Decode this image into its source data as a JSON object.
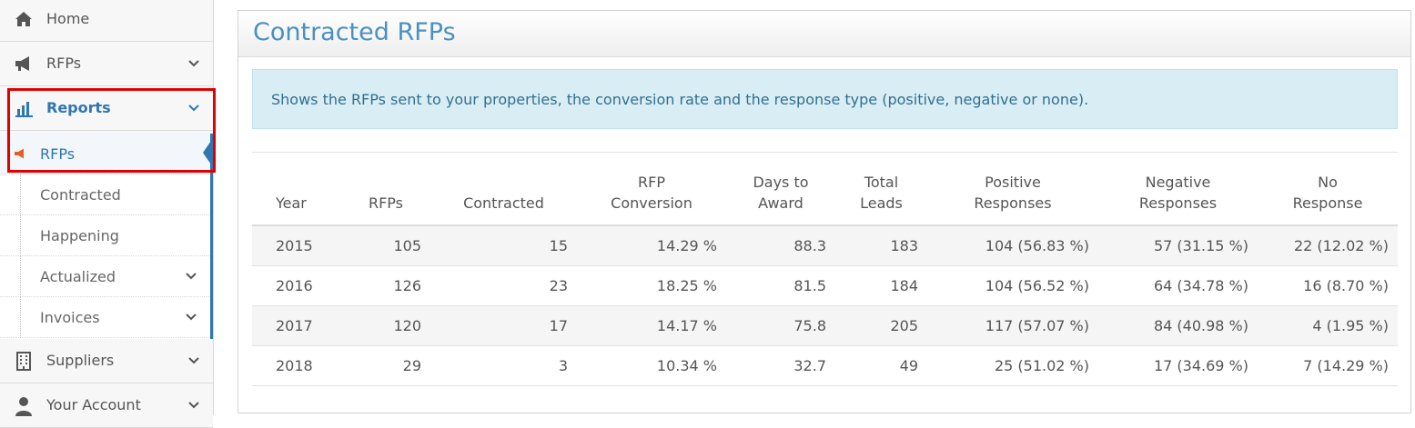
{
  "sidebar": {
    "items": [
      {
        "label": "Home",
        "icon": "home-icon"
      },
      {
        "label": "RFPs",
        "icon": "megaphone-icon"
      },
      {
        "label": "Reports",
        "icon": "bar-chart-icon"
      }
    ],
    "sub_items": [
      {
        "label": "RFPs",
        "icon": "megaphone-icon"
      },
      {
        "label": "Contracted"
      },
      {
        "label": "Happening"
      },
      {
        "label": "Actualized"
      },
      {
        "label": "Invoices"
      }
    ],
    "bottom_items": [
      {
        "label": "Suppliers",
        "icon": "building-icon"
      },
      {
        "label": "Your Account",
        "icon": "user-icon"
      }
    ]
  },
  "main": {
    "title": "Contracted RFPs",
    "info": "Shows the RFPs sent to your properties, the conversion rate and the response type (positive, negative or none).",
    "table": {
      "headers": {
        "year": "Year",
        "rfps": "RFPs",
        "contracted": "Contracted",
        "conversion_1": "RFP",
        "conversion_2": "Conversion",
        "days_1": "Days to",
        "days_2": "Award",
        "leads_1": "Total",
        "leads_2": "Leads",
        "positive_1": "Positive",
        "positive_2": "Responses",
        "negative_1": "Negative",
        "negative_2": "Responses",
        "none_1": "No",
        "none_2": "Response"
      },
      "rows": [
        {
          "year": "2015",
          "rfps": "105",
          "contracted": "15",
          "conversion": "14.29 %",
          "days": "88.3",
          "leads": "183",
          "positive": "104 (56.83 %)",
          "negative": "57 (31.15 %)",
          "none": "22 (12.02 %)"
        },
        {
          "year": "2016",
          "rfps": "126",
          "contracted": "23",
          "conversion": "18.25 %",
          "days": "81.5",
          "leads": "184",
          "positive": "104 (56.52 %)",
          "negative": "64 (34.78 %)",
          "none": "16 (8.70 %)"
        },
        {
          "year": "2017",
          "rfps": "120",
          "contracted": "17",
          "conversion": "14.17 %",
          "days": "75.8",
          "leads": "205",
          "positive": "117 (57.07 %)",
          "negative": "84 (40.98 %)",
          "none": "4 (1.95 %)"
        },
        {
          "year": "2018",
          "rfps": "29",
          "contracted": "3",
          "conversion": "10.34 %",
          "days": "32.7",
          "leads": "49",
          "positive": "25 (51.02 %)",
          "negative": "17 (34.69 %)",
          "none": "7 (14.29 %)"
        }
      ]
    }
  },
  "colors": {
    "accent": "#2e77b0",
    "highlight": "#e00000",
    "info_bg": "#d9edf5",
    "title": "#4a90c2"
  }
}
